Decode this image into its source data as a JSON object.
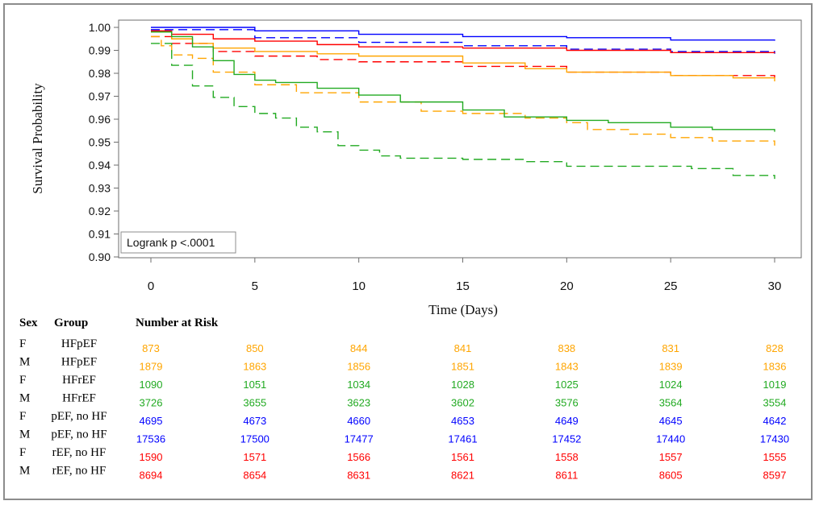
{
  "chart_data": {
    "type": "line",
    "xlabel": "Time (Days)",
    "ylabel": "Survival Probability",
    "xlim": [
      0,
      30
    ],
    "ylim": [
      0.9,
      1.0
    ],
    "x_ticks": [
      "0",
      "5",
      "10",
      "15",
      "20",
      "25",
      "30"
    ],
    "y_ticks": [
      "0.90",
      "0.91",
      "0.92",
      "0.93",
      "0.94",
      "0.95",
      "0.96",
      "0.97",
      "0.98",
      "0.99",
      "1.00"
    ],
    "annotation": "Logrank p <.0001",
    "grid": false,
    "series": [
      {
        "color": "#0000ff",
        "dash": false,
        "points": [
          [
            0,
            1.0
          ],
          [
            5,
            0.9985
          ],
          [
            10,
            0.997
          ],
          [
            15,
            0.996
          ],
          [
            20,
            0.9955
          ],
          [
            25,
            0.9945
          ],
          [
            30,
            0.9942
          ]
        ]
      },
      {
        "color": "#0000ff",
        "dash": true,
        "points": [
          [
            0,
            0.999
          ],
          [
            5,
            0.9955
          ],
          [
            10,
            0.9935
          ],
          [
            15,
            0.992
          ],
          [
            20,
            0.9905
          ],
          [
            25,
            0.9895
          ],
          [
            30,
            0.9885
          ]
        ]
      },
      {
        "color": "#ff0000",
        "dash": false,
        "points": [
          [
            0,
            0.9985
          ],
          [
            1,
            0.997
          ],
          [
            3,
            0.995
          ],
          [
            5,
            0.994
          ],
          [
            8,
            0.9925
          ],
          [
            10,
            0.9915
          ],
          [
            15,
            0.991
          ],
          [
            20,
            0.99
          ],
          [
            25,
            0.989
          ],
          [
            30,
            0.9888
          ]
        ]
      },
      {
        "color": "#ff0000",
        "dash": true,
        "points": [
          [
            0,
            0.996
          ],
          [
            1,
            0.993
          ],
          [
            3,
            0.9895
          ],
          [
            5,
            0.9875
          ],
          [
            8,
            0.986
          ],
          [
            10,
            0.985
          ],
          [
            15,
            0.983
          ],
          [
            20,
            0.9805
          ],
          [
            25,
            0.979
          ],
          [
            30,
            0.978
          ]
        ]
      },
      {
        "color": "#ffa500",
        "dash": false,
        "points": [
          [
            0,
            0.998
          ],
          [
            1,
            0.995
          ],
          [
            2,
            0.993
          ],
          [
            3,
            0.991
          ],
          [
            5,
            0.9895
          ],
          [
            8,
            0.9885
          ],
          [
            10,
            0.9875
          ],
          [
            15,
            0.9845
          ],
          [
            18,
            0.982
          ],
          [
            20,
            0.9805
          ],
          [
            25,
            0.979
          ],
          [
            28,
            0.978
          ],
          [
            30,
            0.9765
          ]
        ]
      },
      {
        "color": "#ffa500",
        "dash": true,
        "points": [
          [
            0,
            0.996
          ],
          [
            0.5,
            0.992
          ],
          [
            1,
            0.988
          ],
          [
            2,
            0.9865
          ],
          [
            3,
            0.9805
          ],
          [
            5,
            0.975
          ],
          [
            7,
            0.9715
          ],
          [
            10,
            0.9675
          ],
          [
            13,
            0.9635
          ],
          [
            15,
            0.9625
          ],
          [
            18,
            0.9605
          ],
          [
            20,
            0.9585
          ],
          [
            21,
            0.9555
          ],
          [
            23,
            0.9535
          ],
          [
            25,
            0.952
          ],
          [
            27,
            0.9505
          ],
          [
            30,
            0.9485
          ]
        ]
      },
      {
        "color": "#22aa22",
        "dash": false,
        "points": [
          [
            0,
            0.998
          ],
          [
            1,
            0.996
          ],
          [
            2,
            0.9915
          ],
          [
            3,
            0.9855
          ],
          [
            4,
            0.9795
          ],
          [
            5,
            0.977
          ],
          [
            6,
            0.976
          ],
          [
            8,
            0.9735
          ],
          [
            10,
            0.9705
          ],
          [
            12,
            0.9675
          ],
          [
            15,
            0.964
          ],
          [
            17,
            0.961
          ],
          [
            20,
            0.9595
          ],
          [
            22,
            0.9585
          ],
          [
            25,
            0.9565
          ],
          [
            27,
            0.9555
          ],
          [
            30,
            0.9545
          ]
        ]
      },
      {
        "color": "#22aa22",
        "dash": true,
        "points": [
          [
            0,
            0.993
          ],
          [
            1,
            0.9835
          ],
          [
            2,
            0.9745
          ],
          [
            3,
            0.9695
          ],
          [
            4,
            0.9655
          ],
          [
            5,
            0.9625
          ],
          [
            6,
            0.9605
          ],
          [
            7,
            0.9565
          ],
          [
            8,
            0.9545
          ],
          [
            9,
            0.9485
          ],
          [
            10,
            0.9465
          ],
          [
            11,
            0.944
          ],
          [
            12,
            0.943
          ],
          [
            15,
            0.9425
          ],
          [
            18,
            0.9415
          ],
          [
            20,
            0.9395
          ],
          [
            25,
            0.9395
          ],
          [
            26,
            0.9385
          ],
          [
            28,
            0.9355
          ],
          [
            30,
            0.934
          ]
        ]
      }
    ],
    "risk_table": {
      "headers": {
        "sex": "Sex",
        "group": "Group",
        "risk": "Number at Risk"
      },
      "rows": [
        {
          "sex": "F",
          "group": "HFpEF",
          "color": "#ffa500",
          "values": [
            "873",
            "850",
            "844",
            "841",
            "838",
            "831",
            "828"
          ]
        },
        {
          "sex": "M",
          "group": "HFpEF",
          "color": "#ffa500",
          "values": [
            "1879",
            "1863",
            "1856",
            "1851",
            "1843",
            "1839",
            "1836"
          ]
        },
        {
          "sex": "F",
          "group": "HFrEF",
          "color": "#22aa22",
          "values": [
            "1090",
            "1051",
            "1034",
            "1028",
            "1025",
            "1024",
            "1019"
          ]
        },
        {
          "sex": "M",
          "group": "HFrEF",
          "color": "#22aa22",
          "values": [
            "3726",
            "3655",
            "3623",
            "3602",
            "3576",
            "3564",
            "3554"
          ]
        },
        {
          "sex": "F",
          "group": "pEF, no HF",
          "color": "#0000ff",
          "values": [
            "4695",
            "4673",
            "4660",
            "4653",
            "4649",
            "4645",
            "4642"
          ]
        },
        {
          "sex": "M",
          "group": "pEF, no HF",
          "color": "#0000ff",
          "values": [
            "17536",
            "17500",
            "17477",
            "17461",
            "17452",
            "17440",
            "17430"
          ]
        },
        {
          "sex": "F",
          "group": "rEF, no HF",
          "color": "#ff0000",
          "values": [
            "1590",
            "1571",
            "1566",
            "1561",
            "1558",
            "1557",
            "1555"
          ]
        },
        {
          "sex": "M",
          "group": "rEF, no HF",
          "color": "#ff0000",
          "values": [
            "8694",
            "8654",
            "8631",
            "8621",
            "8611",
            "8605",
            "8597"
          ]
        }
      ]
    }
  }
}
